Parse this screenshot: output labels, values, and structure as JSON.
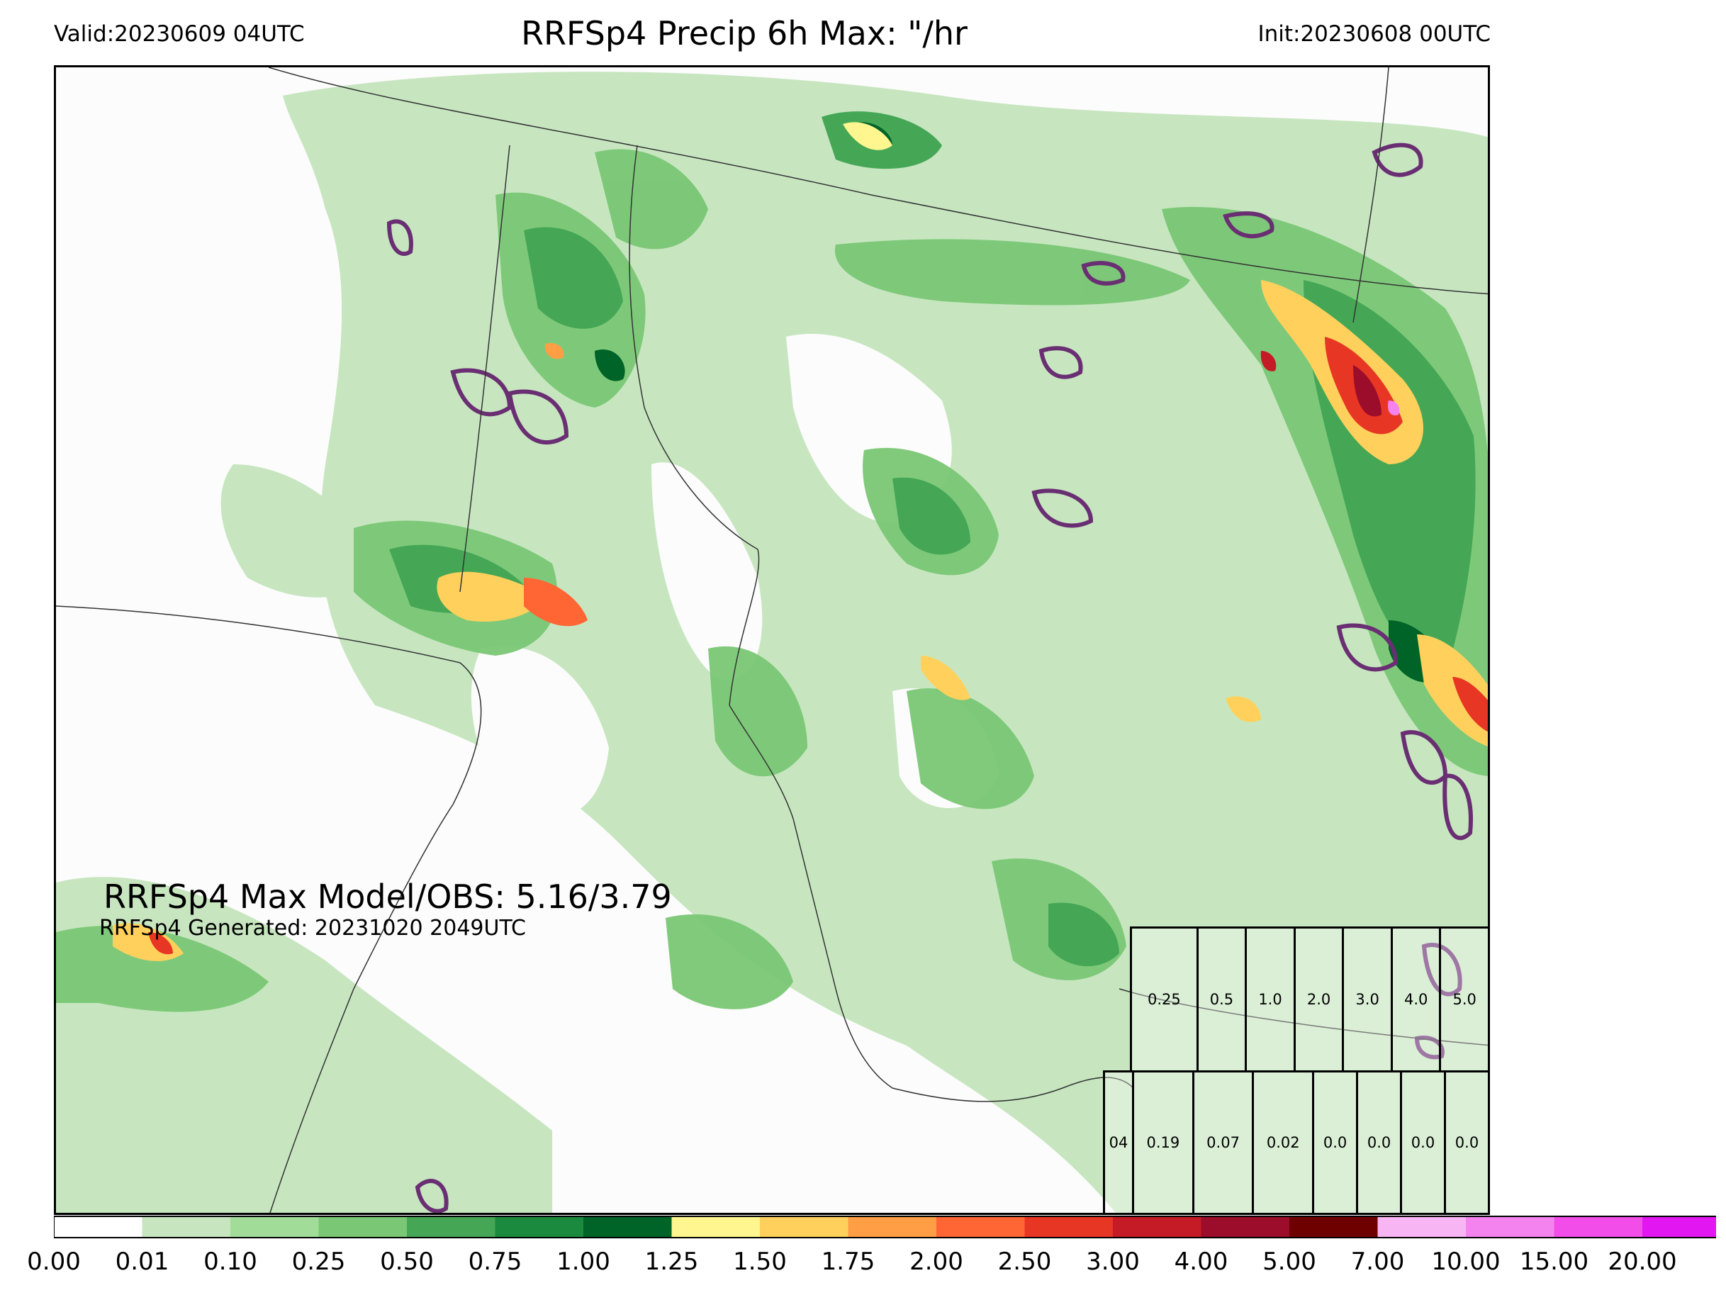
{
  "header": {
    "valid": "Valid:20230609 04UTC",
    "title": "RRFSp4 Precip 6h Max: \"/hr",
    "init": "Init:20230608 00UTC"
  },
  "stats": {
    "max_line": "RRFSp4 Max Model/OBS: 5.16/3.79",
    "generated": "RRFSp4 Generated: 20231020 2049UTC"
  },
  "thresholds_table": {
    "header_row": [
      "0.25",
      "0.5",
      "1.0",
      "2.0",
      "3.0",
      "4.0",
      "5.0"
    ],
    "value_row": [
      "04",
      "0.19",
      "0.07",
      "0.02",
      "0.0",
      "0.0",
      "0.0",
      "0.0"
    ]
  },
  "colorbar": {
    "ticks": [
      "0.00",
      "0.01",
      "0.10",
      "0.25",
      "0.50",
      "0.75",
      "1.00",
      "1.25",
      "1.50",
      "1.75",
      "2.00",
      "2.50",
      "3.00",
      "4.00",
      "5.00",
      "7.00",
      "10.00",
      "15.00",
      "20.00"
    ],
    "colors": [
      "#ffffff",
      "#c7e6c0",
      "#a1dc99",
      "#7ac775",
      "#45a756",
      "#1b8a3e",
      "#006327",
      "#fff68f",
      "#ffd15c",
      "#ff9e44",
      "#ff6633",
      "#e83624",
      "#c41b26",
      "#9b0d2a",
      "#6f0000",
      "#f7b5f4",
      "#f583ef",
      "#f24de8",
      "#e216f0",
      "#b40fd8",
      "#8c0bc8"
    ],
    "extend_color": "#8c0bc8"
  },
  "map": {
    "obs_contour_color": "#6a2f73"
  }
}
